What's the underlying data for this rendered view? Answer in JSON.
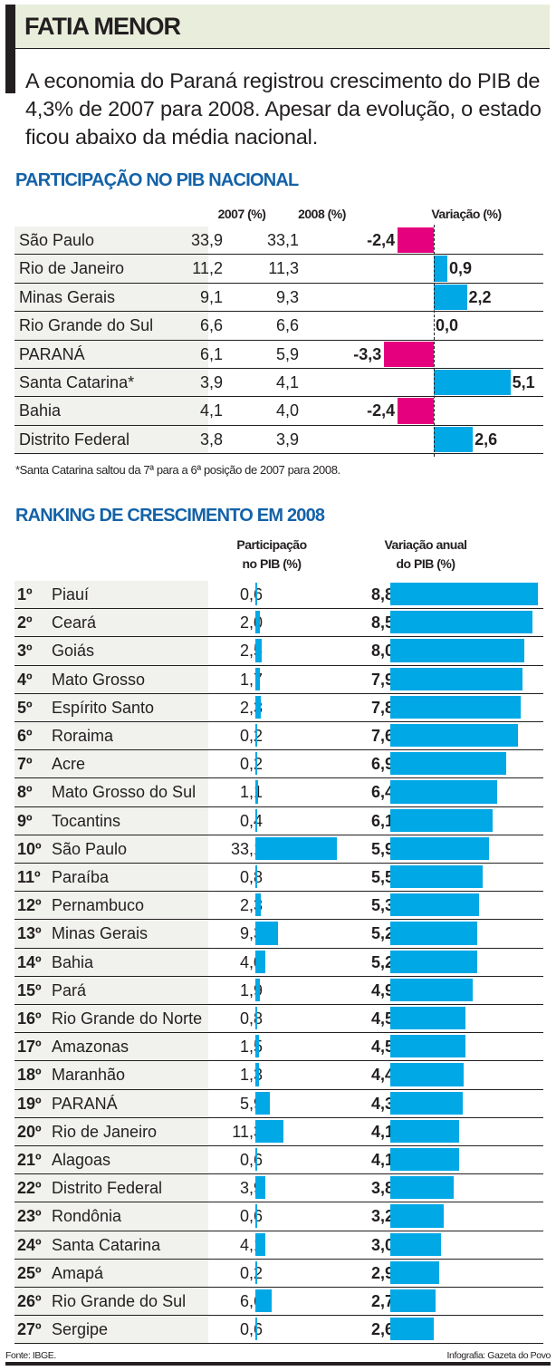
{
  "header": {
    "title": "FATIA MENOR",
    "intro": "A economia do Paraná registrou crescimento do PIB de 4,3% de 2007 para 2008. Apesar da evolução, o estado ficou abaixo da média nacional."
  },
  "colors": {
    "positive": "#00a8e6",
    "negative": "#e5007e",
    "section_title": "#1462a8",
    "title_band": "#e8eedb"
  },
  "footer": {
    "source": "Fonte: IBGE.",
    "credit": "Infografia: Gazeta do Povo"
  },
  "chart_data": [
    {
      "type": "bar",
      "title": "PARTICIPAÇÃO NO PIB NACIONAL",
      "columns": [
        "2007 (%)",
        "2008 (%)",
        "Variação (%)"
      ],
      "categories": [
        "São Paulo",
        "Rio de Janeiro",
        "Minas Gerais",
        "Rio Grande do Sul",
        "PARANÁ",
        "Santa Catarina*",
        "Bahia",
        "Distrito Federal"
      ],
      "series": [
        {
          "name": "2007 (%)",
          "values": [
            33.9,
            11.2,
            9.1,
            6.6,
            6.1,
            3.9,
            4.1,
            3.8
          ],
          "labels": [
            "33,9",
            "11,2",
            "9,1",
            "6,6",
            "6,1",
            "3,9",
            "4,1",
            "3,8"
          ]
        },
        {
          "name": "2008 (%)",
          "values": [
            33.1,
            11.3,
            9.3,
            6.6,
            5.9,
            4.1,
            4.0,
            3.9
          ],
          "labels": [
            "33,1",
            "11,3",
            "9,3",
            "6,6",
            "5,9",
            "4,1",
            "4,0",
            "3,9"
          ]
        },
        {
          "name": "Variação (%)",
          "values": [
            -2.4,
            0.9,
            2.2,
            0.0,
            -3.3,
            5.1,
            -2.4,
            2.6
          ],
          "labels": [
            "-2,4",
            "0,9",
            "2,2",
            "0,0",
            "-3,3",
            "5,1",
            "-2,4",
            "2,6"
          ]
        }
      ],
      "footnote": "*Santa Catarina saltou da 7ª para a 6ª posição de 2007 para 2008."
    },
    {
      "type": "bar",
      "title": "RANKING DE CRESCIMENTO EM 2008",
      "columns": [
        "Participação no PIB (%)",
        "Variação anual do PIB (%)"
      ],
      "column_lines": [
        [
          "Participação",
          "no PIB (%)"
        ],
        [
          "Variação anual",
          "do PIB (%)"
        ]
      ],
      "ranks": [
        "1º",
        "2º",
        "3º",
        "4º",
        "5º",
        "6º",
        "7º",
        "8º",
        "9º",
        "10º",
        "11º",
        "12º",
        "13º",
        "14º",
        "15º",
        "16º",
        "17º",
        "18º",
        "19º",
        "20º",
        "21º",
        "22º",
        "23º",
        "24º",
        "25º",
        "26º",
        "27º"
      ],
      "categories": [
        "Piauí",
        "Ceará",
        "Goiás",
        "Mato Grosso",
        "Espírito Santo",
        "Roraima",
        "Acre",
        "Mato Grosso do Sul",
        "Tocantins",
        "São Paulo",
        "Paraíba",
        "Pernambuco",
        "Minas Gerais",
        "Bahia",
        "Pará",
        "Rio Grande do Norte",
        "Amazonas",
        "Maranhão",
        "PARANÁ",
        "Rio de Janeiro",
        "Alagoas",
        "Distrito Federal",
        "Rondônia",
        "Santa Catarina",
        "Amapá",
        "Rio Grande do Sul",
        "Sergipe"
      ],
      "series": [
        {
          "name": "Participação no PIB (%)",
          "values": [
            0.6,
            2.0,
            2.5,
            1.7,
            2.3,
            0.2,
            0.2,
            1.1,
            0.4,
            33.1,
            0.8,
            2.3,
            9.3,
            4.0,
            1.9,
            0.8,
            1.5,
            1.3,
            5.9,
            11.3,
            0.6,
            3.9,
            0.6,
            4.1,
            0.2,
            6.6,
            0.6
          ],
          "labels": [
            "0,6",
            "2,0",
            "2,5",
            "1,7",
            "2,3",
            "0,2",
            "0,2",
            "1,1",
            "0,4",
            "33,1",
            "0,8",
            "2,3",
            "9,3",
            "4,0",
            "1,9",
            "0,8",
            "1,5",
            "1,3",
            "5,9",
            "11,3",
            "0,6",
            "3,9",
            "0,6",
            "4,1",
            "0,2",
            "6,6",
            "0,6"
          ]
        },
        {
          "name": "Variação anual do PIB (%)",
          "values": [
            8.8,
            8.5,
            8.0,
            7.9,
            7.8,
            7.6,
            6.9,
            6.4,
            6.1,
            5.9,
            5.5,
            5.3,
            5.2,
            5.2,
            4.9,
            4.5,
            4.5,
            4.4,
            4.3,
            4.1,
            4.1,
            3.8,
            3.2,
            3.0,
            2.9,
            2.7,
            2.6
          ],
          "labels": [
            "8,8",
            "8,5",
            "8,0",
            "7,9",
            "7,8",
            "7,6",
            "6,9",
            "6,4",
            "6,1",
            "5,9",
            "5,5",
            "5,3",
            "5,2",
            "5,2",
            "4,9",
            "4,5",
            "4,5",
            "4,4",
            "4,3",
            "4,1",
            "4,1",
            "3,8",
            "3,2",
            "3,0",
            "2,9",
            "2,7",
            "2,6"
          ]
        }
      ]
    }
  ]
}
